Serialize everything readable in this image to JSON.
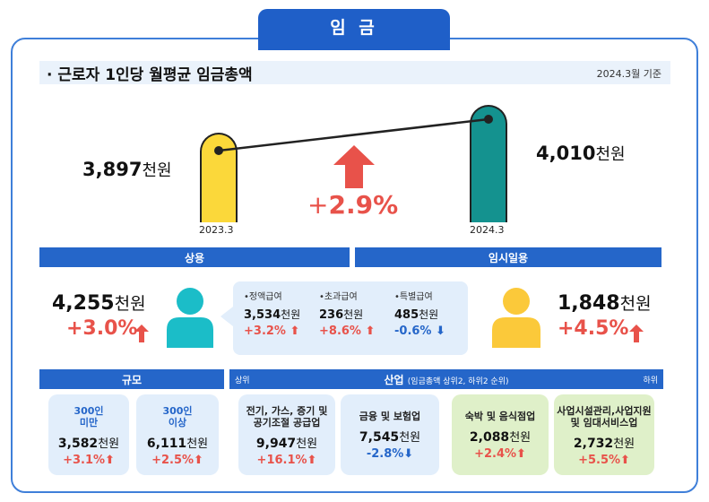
{
  "title": "임 금",
  "section": {
    "heading": "· 근로자 1인당 월평균 임금총액",
    "date": "2024.3월 기준"
  },
  "comparison": {
    "left": {
      "value": "3,897",
      "unit": "천원",
      "year": "2023.3"
    },
    "right": {
      "value": "4,010",
      "unit": "천원",
      "year": "2024.3"
    },
    "change": {
      "sign": "+",
      "value": "2.9%"
    }
  },
  "bands": {
    "regular": "상용",
    "temporary": "임시일용"
  },
  "regular": {
    "value": "4,255",
    "unit": "천원",
    "pct": "+3.0%",
    "breakdown": [
      {
        "label": "•정액급여",
        "value": "3,534",
        "unit": "천원",
        "pct": "+3.2%",
        "dir": "up"
      },
      {
        "label": "•초과급여",
        "value": "236",
        "unit": "천원",
        "pct": "+8.6%",
        "dir": "up"
      },
      {
        "label": "•특별급여",
        "value": "485",
        "unit": "천원",
        "pct": "-0.6%",
        "dir": "down"
      }
    ]
  },
  "temporary": {
    "value": "1,848",
    "unit": "천원",
    "pct": "+4.5%"
  },
  "scale": {
    "band": "규모",
    "cards": [
      {
        "label1": "300인",
        "label2": "미만",
        "value": "3,582",
        "unit": "천원",
        "pct": "+3.1%",
        "dir": "up"
      },
      {
        "label1": "300인",
        "label2": "이상",
        "value": "6,111",
        "unit": "천원",
        "pct": "+2.5%",
        "dir": "up"
      }
    ]
  },
  "industry": {
    "band": "산업",
    "band_sub": "(임금총액 상위2, 하위2 순위)",
    "top_label": "상위",
    "bottom_label": "하위",
    "cards": [
      {
        "label1": "전기, 가스, 증기 및",
        "label2": "공기조절 공급업",
        "value": "9,947",
        "unit": "천원",
        "pct": "+16.1%",
        "dir": "up"
      },
      {
        "label1": "금융 및 보험업",
        "label2": "",
        "value": "7,545",
        "unit": "천원",
        "pct": "-2.8%",
        "dir": "down"
      },
      {
        "label1": "숙박 및 음식점업",
        "label2": "",
        "value": "2,088",
        "unit": "천원",
        "pct": "+2.4%",
        "dir": "up"
      },
      {
        "label1": "사업시설관리,사업지원",
        "label2": "및 임대서비스업",
        "value": "2,732",
        "unit": "천원",
        "pct": "+5.5%",
        "dir": "up"
      }
    ]
  },
  "colors": {
    "up": "#e8524a",
    "down": "#2566c9",
    "accent": "#2566c9"
  }
}
